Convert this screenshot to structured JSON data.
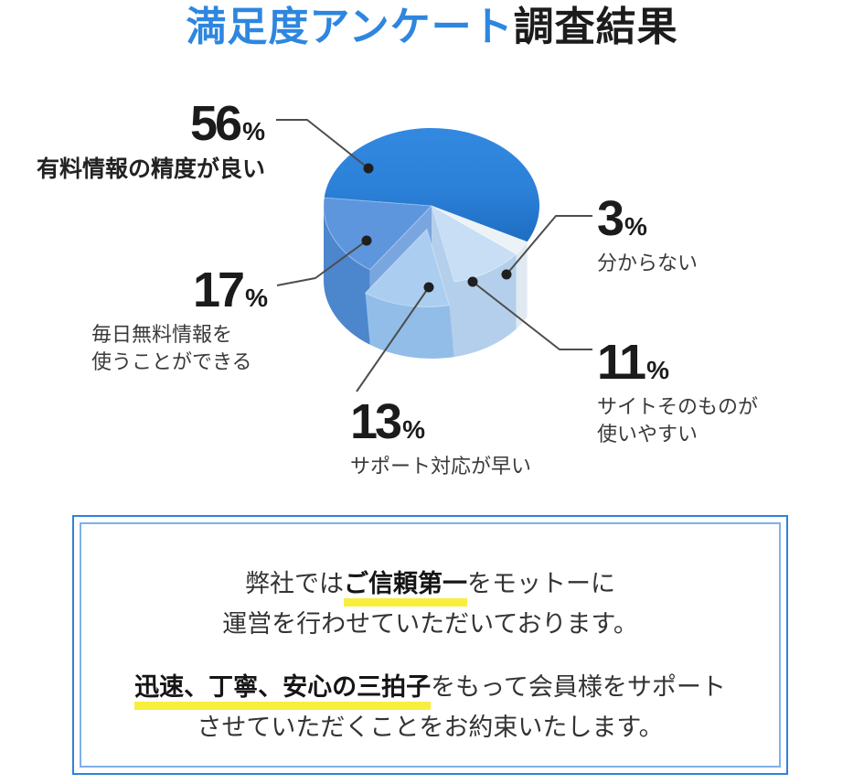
{
  "title": {
    "accent_text": "満足度アンケート",
    "rest_text": "調査結果",
    "accent_color": "#2e86df",
    "text_color": "#1c1c1c"
  },
  "chart_data": {
    "type": "pie",
    "style": "3d-cylinder",
    "title": "満足度アンケート調査結果",
    "unit": "%",
    "legend_position": "callouts",
    "slices": [
      {
        "label": "有料情報の精度が良い",
        "value": 56,
        "color": "#2b80d8",
        "color_light": "#3389e0",
        "color_dark": "#1e6ec2",
        "wall": "#1c64b0",
        "exploded": false
      },
      {
        "label": "毎日無料情報を使うことができる",
        "value": 17,
        "color": "#5d96dc",
        "wall": "#4c86cd",
        "cut": "#7aa6e0",
        "exploded": false
      },
      {
        "label": "サポート対応が早い",
        "value": 13,
        "color": "#abcef0",
        "wall": "#92bde8",
        "exploded": true
      },
      {
        "label": "サイトそのものが使いやすい",
        "value": 11,
        "color": "#c7def4",
        "wall": "#b3cfeb",
        "cut": "#b3cfeb",
        "exploded": false
      },
      {
        "label": "分からない",
        "value": 3,
        "color": "#edf2f7",
        "wall": "#e0e9f1",
        "exploded": false
      }
    ]
  },
  "callouts": {
    "percent_sign": "%",
    "c56": {
      "value": "56",
      "line1": "有料情報の精度が良い"
    },
    "c17": {
      "value": "17",
      "line1": "毎日無料情報を",
      "line2": "使うことができる"
    },
    "c13": {
      "value": "13",
      "line1": "サポート対応が早い"
    },
    "c11": {
      "value": "11",
      "line1": "サイトそのものが",
      "line2": "使いやすい"
    },
    "c3": {
      "value": "3",
      "line1": "分からない"
    }
  },
  "message_box": {
    "border_color": "#2e82dd",
    "inner_border_color": "#7fb0e8",
    "highlight_color": "#f8ee3e",
    "p1_pre": "弊社では",
    "p1_em": "ご信頼第一",
    "p1_post": "をモットーに",
    "p1_line2": "運営を行わせていただいております。",
    "p2_em": "迅速、丁寧、安心の三拍子",
    "p2_post": "をもって会員様をサポート",
    "p2_line2": "させていただくことをお約束いたします。"
  }
}
